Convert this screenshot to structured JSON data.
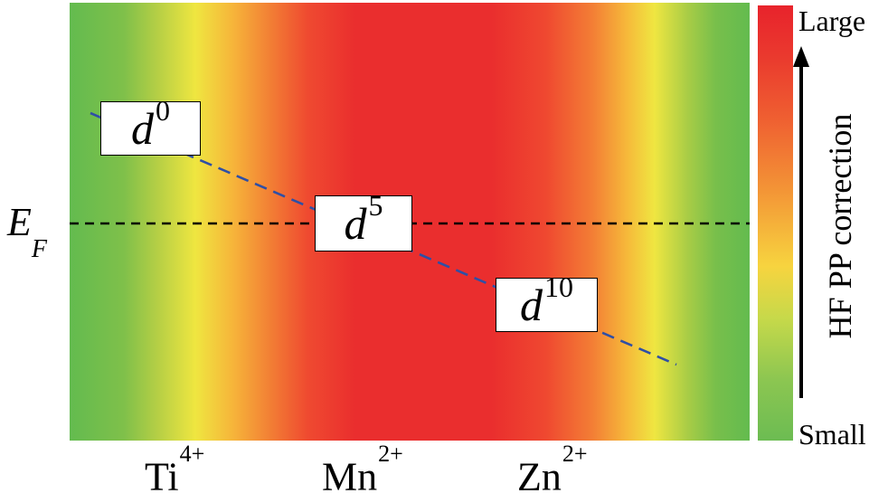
{
  "colorbar": {
    "top_label": "Large",
    "bottom_label": "Small",
    "axis_label": "HF PP correction",
    "colors": {
      "large": "#e8232c",
      "mid": "#f7d43f",
      "small": "#6cbc52"
    }
  },
  "fermi_level": {
    "symbol": "E",
    "subscript": "F"
  },
  "boxes": [
    {
      "base": "d",
      "sup": "0"
    },
    {
      "base": "d",
      "sup": "5"
    },
    {
      "base": "d",
      "sup": "10"
    }
  ],
  "ions": [
    {
      "base": "Ti",
      "sup": "4+"
    },
    {
      "base": "Mn",
      "sup": "2+"
    },
    {
      "base": "Zn",
      "sup": "2+"
    }
  ],
  "line_colors": {
    "trend": "#2f4fa5",
    "fermi": "#000000"
  }
}
